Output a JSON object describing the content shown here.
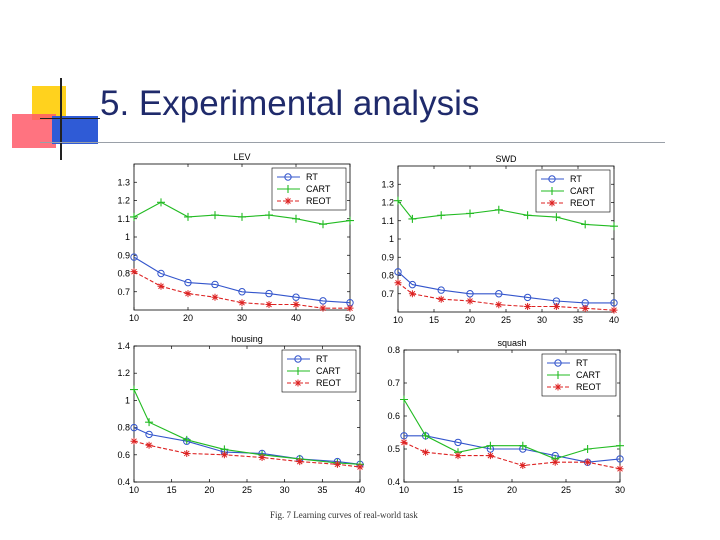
{
  "slide": {
    "title": "5. Experimental analysis",
    "caption": "Fig. 7 Learning curves of real-world task"
  },
  "colors": {
    "RT": "#3355cc",
    "CART": "#22bb22",
    "REOT": "#dd2222",
    "title": "#1f2a6b"
  },
  "chart_data": [
    {
      "type": "line",
      "title": "LEV",
      "x": [
        10,
        15,
        20,
        25,
        30,
        35,
        40,
        45,
        50
      ],
      "xlim": [
        10,
        50
      ],
      "ylim": [
        0.6,
        1.4
      ],
      "xticks": [
        "10",
        "20",
        "30",
        "40",
        "50"
      ],
      "yticks": [
        "0.7",
        "0.8",
        "0.9",
        "1",
        "1.1",
        "1.2",
        "1.3"
      ],
      "legend": "top-right",
      "series": [
        {
          "name": "RT",
          "values": [
            0.89,
            0.8,
            0.75,
            0.74,
            0.7,
            0.69,
            0.67,
            0.65,
            0.64
          ]
        },
        {
          "name": "CART",
          "values": [
            1.11,
            1.19,
            1.11,
            1.12,
            1.11,
            1.12,
            1.1,
            1.07,
            1.09
          ]
        },
        {
          "name": "REOT",
          "values": [
            0.81,
            0.73,
            0.69,
            0.67,
            0.64,
            0.63,
            0.63,
            0.61,
            0.61
          ]
        }
      ]
    },
    {
      "type": "line",
      "title": "SWD",
      "x": [
        10,
        12,
        16,
        20,
        24,
        28,
        32,
        36,
        40
      ],
      "xlim": [
        10,
        40
      ],
      "ylim": [
        0.6,
        1.4
      ],
      "xticks": [
        "10",
        "15",
        "20",
        "25",
        "30",
        "35",
        "40"
      ],
      "yticks": [
        "0.7",
        "0.8",
        "0.9",
        "1",
        "1.1",
        "1.2",
        "1.3"
      ],
      "legend": "top-right",
      "series": [
        {
          "name": "RT",
          "values": [
            0.82,
            0.75,
            0.72,
            0.7,
            0.7,
            0.68,
            0.66,
            0.65,
            0.65
          ]
        },
        {
          "name": "CART",
          "values": [
            1.21,
            1.11,
            1.13,
            1.14,
            1.16,
            1.13,
            1.12,
            1.08,
            1.07
          ]
        },
        {
          "name": "REOT",
          "values": [
            0.76,
            0.7,
            0.67,
            0.66,
            0.64,
            0.63,
            0.63,
            0.62,
            0.61
          ]
        }
      ]
    },
    {
      "type": "line",
      "title": "housing",
      "x": [
        10,
        12,
        17,
        22,
        27,
        32,
        37,
        40
      ],
      "xlim": [
        10,
        40
      ],
      "ylim": [
        0.4,
        1.4
      ],
      "xticks": [
        "10",
        "15",
        "20",
        "25",
        "30",
        "35",
        "40"
      ],
      "yticks": [
        "0.4",
        "0.6",
        "0.8",
        "1",
        "1.2",
        "1.4"
      ],
      "legend": "top-right",
      "series": [
        {
          "name": "RT",
          "values": [
            0.8,
            0.75,
            0.7,
            0.62,
            0.61,
            0.57,
            0.55,
            0.53
          ]
        },
        {
          "name": "CART",
          "values": [
            1.08,
            0.84,
            0.71,
            0.64,
            0.6,
            0.57,
            0.54,
            0.53
          ]
        },
        {
          "name": "REOT",
          "values": [
            0.7,
            0.67,
            0.61,
            0.6,
            0.58,
            0.55,
            0.53,
            0.51
          ]
        }
      ]
    },
    {
      "type": "line",
      "title": "squash",
      "x": [
        10,
        12,
        15,
        18,
        21,
        24,
        27,
        30
      ],
      "xlim": [
        10,
        30
      ],
      "ylim": [
        0.4,
        0.8
      ],
      "xticks": [
        "10",
        "15",
        "20",
        "25",
        "30"
      ],
      "yticks": [
        "0.4",
        "0.5",
        "0.6",
        "0.7",
        "0.8"
      ],
      "legend": "top-right",
      "series": [
        {
          "name": "RT",
          "values": [
            0.54,
            0.54,
            0.52,
            0.5,
            0.5,
            0.48,
            0.46,
            0.47
          ]
        },
        {
          "name": "CART",
          "values": [
            0.65,
            0.54,
            0.49,
            0.51,
            0.51,
            0.47,
            0.5,
            0.51
          ]
        },
        {
          "name": "REOT",
          "values": [
            0.52,
            0.49,
            0.48,
            0.48,
            0.45,
            0.46,
            0.46,
            0.44
          ]
        }
      ]
    }
  ]
}
